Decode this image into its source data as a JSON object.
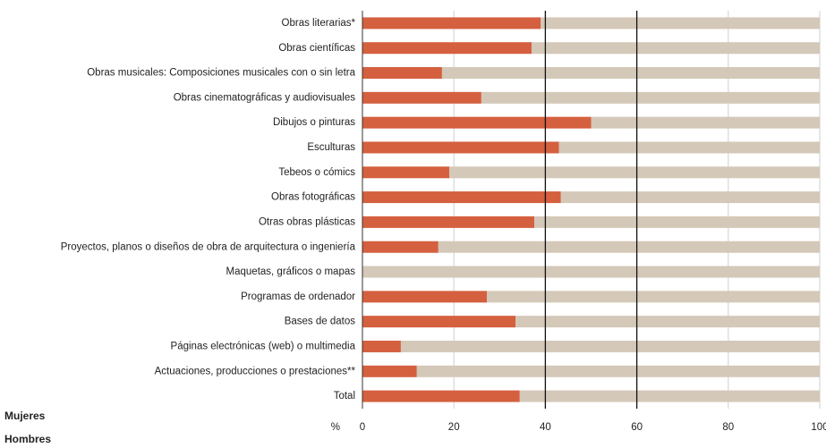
{
  "chart_data": {
    "type": "barh_stacked",
    "categories": [
      "Obras literarias*",
      "Obras científicas",
      "Obras musicales: Composiciones musicales con o sin letra",
      "Obras cinematográficas y audiovisuales",
      "Dibujos o pinturas",
      "Esculturas",
      "Tebeos o cómics",
      "Obras fotográficas",
      "Otras obras plásticas",
      "Proyectos, planos o diseños de obra de arquitectura o ingeniería",
      "Maquetas, gráficos o mapas",
      "Programas de ordenador",
      "Bases de datos",
      "Páginas electrónicas (web) o multimedia",
      "Actuaciones, producciones o prestaciones**",
      "Total"
    ],
    "series": [
      {
        "name": "Mujeres",
        "color": "#d4603f",
        "values": [
          39,
          37,
          17.4,
          26,
          50,
          43,
          19,
          43.4,
          37.6,
          16.6,
          0,
          27.2,
          33.5,
          8.4,
          11.9,
          34.4
        ]
      },
      {
        "name": "Hombres",
        "color": "#d4c8b8",
        "values": [
          61,
          63,
          82.6,
          74,
          50,
          57,
          81,
          56.6,
          62.4,
          83.4,
          100,
          72.8,
          66.5,
          91.6,
          88.1,
          65.6
        ]
      }
    ],
    "xlabel": "%",
    "xlim": [
      0,
      100
    ],
    "xticks": [
      0,
      20,
      40,
      60,
      80,
      100
    ],
    "reference_lines": [
      40,
      60
    ],
    "grid": true
  }
}
